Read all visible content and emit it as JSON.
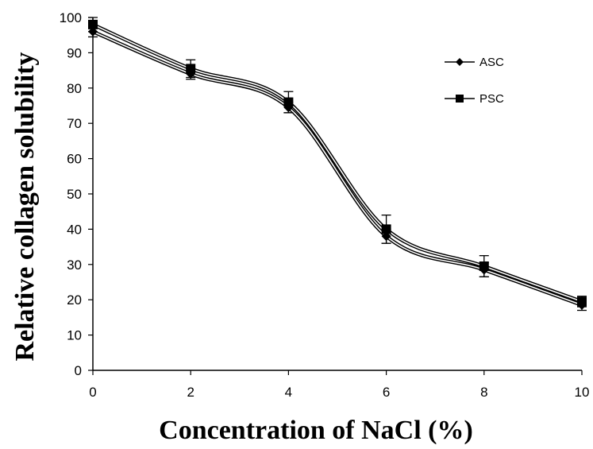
{
  "chart_data": {
    "type": "line",
    "title": "",
    "xlabel": "Concentration of NaCl (%)",
    "ylabel": "Relative collagen solubility",
    "x": [
      0,
      2,
      4,
      6,
      8,
      10
    ],
    "xlim": [
      0,
      10
    ],
    "ylim": [
      0,
      100
    ],
    "xticks": [
      0,
      2,
      4,
      6,
      8,
      10
    ],
    "yticks": [
      0,
      10,
      20,
      30,
      40,
      50,
      60,
      70,
      80,
      90,
      100
    ],
    "grid": false,
    "legend_position": "top-right",
    "smooth": true,
    "series": [
      {
        "name": "ASC",
        "marker": "diamond",
        "color": "#000000",
        "values": [
          96,
          84,
          74.5,
          38,
          28.5,
          18.5
        ],
        "errors": [
          1.5,
          1.5,
          1.5,
          2,
          2,
          1.5
        ]
      },
      {
        "name": "PSC",
        "marker": "square",
        "color": "#000000",
        "values": [
          98,
          85.5,
          76,
          40,
          29.5,
          19.5
        ],
        "errors": [
          2,
          2.5,
          3,
          4,
          3,
          1.5
        ]
      }
    ]
  }
}
